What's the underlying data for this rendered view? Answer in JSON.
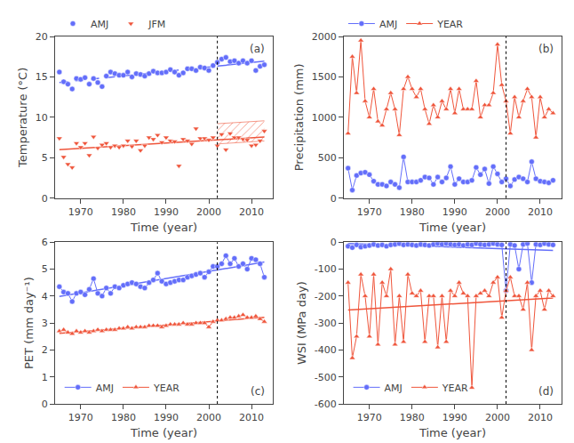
{
  "chart_data": [
    {
      "type": "line",
      "x_label": "Time (year)",
      "y_label": "Temperature (°C)",
      "annotation": "(a)",
      "x": [
        1965,
        1966,
        1967,
        1968,
        1969,
        1970,
        1971,
        1972,
        1973,
        1974,
        1975,
        1976,
        1977,
        1978,
        1979,
        1980,
        1981,
        1982,
        1983,
        1984,
        1985,
        1986,
        1987,
        1988,
        1989,
        1990,
        1991,
        1992,
        1993,
        1994,
        1995,
        1996,
        1997,
        1998,
        1999,
        2000,
        2001,
        2002,
        2003,
        2004,
        2005,
        2006,
        2007,
        2008,
        2009,
        2010,
        2011,
        2012,
        2013
      ],
      "xlim": [
        1964,
        2015
      ],
      "xticks": [
        1970,
        1980,
        1990,
        2000,
        2010
      ],
      "ylim": [
        0,
        20
      ],
      "yticks": [
        0,
        5,
        10,
        15,
        20
      ],
      "vline_x": 2002,
      "grid": false,
      "legend": "upper left",
      "series": [
        {
          "type": "band",
          "color": "#EF553B",
          "x": [
            2002,
            2013
          ],
          "lower": [
            6.707,
            7.068
          ],
          "upper": [
            9.207,
            9.568
          ]
        },
        {
          "type": "line",
          "color": "#636efa",
          "line_style": "dashed",
          "x": [
            1965,
            2002
          ],
          "values": [
            14.308,
            16.332
          ]
        },
        {
          "type": "line",
          "color": "#636efa",
          "line_style": "solid",
          "x": [
            2002,
            2013
          ],
          "values": [
            16.332,
            16.933
          ]
        },
        {
          "type": "line",
          "color": "#EF553B",
          "line_style": "solid",
          "x": [
            1965,
            2013
          ],
          "values": [
            5.991,
            7.568
          ]
        },
        {
          "type": "scatter",
          "name": "JFM",
          "color": "#EF553B",
          "marker": "triangle-down",
          "line_style": "none",
          "values": [
            7.4,
            5.1,
            4.2,
            3.8,
            6.8,
            6.3,
            6.8,
            5.3,
            7.6,
            6.2,
            6.6,
            6.8,
            6.3,
            6.5,
            6.3,
            6.5,
            7.1,
            6.4,
            7.1,
            5.9,
            6.5,
            7.5,
            7.3,
            7.8,
            6.9,
            7.5,
            7.1,
            7.0,
            4.0,
            7.3,
            7.1,
            6.7,
            8.6,
            7.4,
            7.4,
            7.2,
            7.5,
            6.5,
            7.9,
            6.0,
            8.0,
            7.5,
            7.5,
            7.3,
            7.2,
            6.5,
            6.6,
            7.1,
            8.3
          ]
        },
        {
          "type": "scatter",
          "name": "AMJ",
          "color": "#636efa",
          "marker": "circle",
          "line_style": "none",
          "values": [
            15.6,
            14.4,
            14.1,
            13.5,
            14.8,
            14.7,
            14.9,
            14.1,
            14.8,
            14.3,
            13.8,
            15.1,
            15.6,
            15.4,
            15.2,
            15.2,
            15.6,
            15.0,
            15.4,
            15.3,
            15.1,
            15.4,
            15.7,
            15.5,
            15.5,
            15.6,
            15.9,
            15.6,
            15.2,
            15.5,
            16.0,
            16.0,
            15.8,
            16.2,
            16.1,
            15.8,
            16.4,
            16.8,
            17.2,
            17.4,
            16.9,
            17.0,
            16.7,
            17.0,
            16.7,
            17.0,
            15.8,
            16.3,
            16.5
          ]
        }
      ]
    },
    {
      "type": "line",
      "x_label": "Time (year)",
      "y_label": "Precipitation (mm)",
      "annotation": "(b)",
      "x": [
        1965,
        1966,
        1967,
        1968,
        1969,
        1970,
        1971,
        1972,
        1973,
        1974,
        1975,
        1976,
        1977,
        1978,
        1979,
        1980,
        1981,
        1982,
        1983,
        1984,
        1985,
        1986,
        1987,
        1988,
        1989,
        1990,
        1991,
        1992,
        1993,
        1994,
        1995,
        1996,
        1997,
        1998,
        1999,
        2000,
        2001,
        2002,
        2003,
        2004,
        2005,
        2006,
        2007,
        2008,
        2009,
        2010,
        2011,
        2012,
        2013
      ],
      "xlim": [
        1964,
        2015
      ],
      "xticks": [
        1970,
        1980,
        1990,
        2000,
        2010
      ],
      "ylim": [
        0,
        2000
      ],
      "yticks": [
        0,
        500,
        1000,
        1500,
        2000
      ],
      "vline_x": 2002,
      "grid": false,
      "legend": "upper left",
      "series": [
        {
          "type": "line",
          "name": "AMJ",
          "color": "#636efa",
          "marker": "circle",
          "line_style": "solid",
          "values": [
            370,
            100,
            280,
            310,
            320,
            290,
            210,
            170,
            170,
            150,
            200,
            170,
            130,
            510,
            200,
            200,
            200,
            220,
            260,
            250,
            170,
            260,
            200,
            250,
            390,
            170,
            240,
            200,
            200,
            220,
            380,
            290,
            360,
            180,
            390,
            300,
            200,
            240,
            150,
            230,
            260,
            240,
            200,
            450,
            240,
            210,
            200,
            190,
            220
          ]
        },
        {
          "type": "line",
          "name": "YEAR",
          "color": "#EF553B",
          "marker": "triangle-up",
          "line_style": "solid",
          "values": [
            800,
            1750,
            1300,
            1950,
            1200,
            1000,
            1350,
            950,
            900,
            1100,
            1300,
            1100,
            780,
            1350,
            1500,
            1350,
            1250,
            1350,
            1100,
            920,
            1150,
            1000,
            1200,
            1100,
            1350,
            1050,
            1350,
            1100,
            1100,
            1100,
            1450,
            1000,
            1150,
            1150,
            1300,
            1900,
            1400,
            1200,
            800,
            1250,
            1000,
            1200,
            1350,
            1250,
            750,
            1250,
            1000,
            1100,
            1050
          ]
        }
      ]
    },
    {
      "type": "line",
      "x_label": "Time (year)",
      "y_label": "PET (mm day⁻¹)",
      "annotation": "(c)",
      "x": [
        1965,
        1966,
        1967,
        1968,
        1969,
        1970,
        1971,
        1972,
        1973,
        1974,
        1975,
        1976,
        1977,
        1978,
        1979,
        1980,
        1981,
        1982,
        1983,
        1984,
        1985,
        1986,
        1987,
        1988,
        1989,
        1990,
        1991,
        1992,
        1993,
        1994,
        1995,
        1996,
        1997,
        1998,
        1999,
        2000,
        2001,
        2002,
        2003,
        2004,
        2005,
        2006,
        2007,
        2008,
        2009,
        2010,
        2011,
        2012,
        2013
      ],
      "xlim": [
        1964,
        2015
      ],
      "xticks": [
        1970,
        1980,
        1990,
        2000,
        2010
      ],
      "ylim": [
        0,
        6
      ],
      "yticks": [
        0,
        1,
        2,
        3,
        4,
        5,
        6
      ],
      "vline_x": 2002,
      "grid": false,
      "legend": "lower left",
      "series": [
        {
          "type": "line",
          "color": "#636efa",
          "line_style": "solid",
          "x": [
            1965,
            2013
          ],
          "values": [
            3.984,
            5.263
          ]
        },
        {
          "type": "line",
          "color": "#EF553B",
          "line_style": "solid",
          "x": [
            1965,
            2013
          ],
          "values": [
            2.617,
            3.214
          ]
        },
        {
          "type": "line",
          "name": "AMJ",
          "color": "#636efa",
          "marker": "circle",
          "line_style": "solid",
          "values": [
            4.35,
            4.15,
            4.1,
            3.8,
            4.1,
            4.15,
            4.05,
            4.25,
            4.65,
            4.1,
            4.0,
            4.3,
            4.1,
            4.35,
            4.3,
            4.4,
            4.45,
            4.5,
            4.45,
            4.35,
            4.3,
            4.5,
            4.6,
            4.85,
            4.55,
            4.45,
            4.5,
            4.55,
            4.6,
            4.6,
            4.7,
            4.75,
            4.8,
            4.85,
            4.7,
            4.9,
            5.1,
            5.1,
            5.2,
            5.5,
            5.2,
            5.4,
            5.1,
            5.2,
            5.0,
            5.4,
            5.35,
            5.2,
            4.7
          ]
        },
        {
          "type": "line",
          "name": "YEAR",
          "color": "#EF553B",
          "marker": "triangle-up",
          "line_style": "solid",
          "values": [
            2.7,
            2.75,
            2.65,
            2.6,
            2.7,
            2.65,
            2.7,
            2.65,
            2.7,
            2.75,
            2.7,
            2.75,
            2.75,
            2.75,
            2.8,
            2.8,
            2.85,
            2.8,
            2.85,
            2.85,
            2.85,
            2.9,
            2.9,
            2.9,
            2.85,
            2.9,
            2.95,
            2.95,
            2.95,
            3.0,
            2.95,
            2.95,
            3.0,
            3.0,
            3.0,
            2.85,
            3.05,
            3.1,
            3.1,
            3.15,
            3.2,
            3.2,
            3.25,
            3.3,
            3.2,
            3.2,
            3.25,
            3.15,
            3.05
          ]
        }
      ]
    },
    {
      "type": "line",
      "x_label": "Time (year)",
      "y_label": "WSI (MPa day)",
      "annotation": "(d)",
      "x": [
        1965,
        1966,
        1967,
        1968,
        1969,
        1970,
        1971,
        1972,
        1973,
        1974,
        1975,
        1976,
        1977,
        1978,
        1979,
        1980,
        1981,
        1982,
        1983,
        1984,
        1985,
        1986,
        1987,
        1988,
        1989,
        1990,
        1991,
        1992,
        1993,
        1994,
        1995,
        1996,
        1997,
        1998,
        1999,
        2000,
        2001,
        2002,
        2003,
        2004,
        2005,
        2006,
        2007,
        2008,
        2009,
        2010,
        2011,
        2012,
        2013
      ],
      "xlim": [
        1964,
        2015
      ],
      "xticks": [
        1970,
        1980,
        1990,
        2000,
        2010
      ],
      "ylim": [
        -600,
        0
      ],
      "yticks": [
        -600,
        -500,
        -400,
        -300,
        -200,
        -100,
        0
      ],
      "vline_x": 2002,
      "grid": false,
      "legend": "lower left",
      "series": [
        {
          "type": "line",
          "color": "#636efa",
          "line_style": "solid",
          "x": [
            1965,
            2013
          ],
          "values": [
            -4.86,
            -30.569
          ]
        },
        {
          "type": "line",
          "color": "#EF553B",
          "line_style": "solid",
          "x": [
            1965,
            2013
          ],
          "values": [
            -251.616,
            -206.751
          ]
        },
        {
          "type": "line",
          "name": "AMJ",
          "color": "#636efa",
          "marker": "circle",
          "line_style": "solid",
          "values": [
            -15,
            -20,
            -10,
            -18,
            -15,
            -12,
            -8,
            -12,
            -10,
            -15,
            -10,
            -8,
            -5,
            -10,
            -8,
            -10,
            -12,
            -8,
            -10,
            -12,
            -8,
            -5,
            -8,
            -5,
            -8,
            -10,
            -8,
            -12,
            -8,
            -10,
            -5,
            -8,
            -10,
            -8,
            -5,
            -8,
            -10,
            -180,
            -8,
            -12,
            -100,
            -8,
            -5,
            -150,
            -8,
            -10,
            -5,
            -8,
            -10
          ]
        },
        {
          "type": "line",
          "name": "YEAR",
          "color": "#EF553B",
          "marker": "triangle-up",
          "line_style": "solid",
          "values": [
            -150,
            -430,
            -350,
            -120,
            -200,
            -350,
            -120,
            -380,
            -150,
            -200,
            -100,
            -380,
            -200,
            -370,
            -120,
            -190,
            -200,
            -180,
            -370,
            -200,
            -200,
            -390,
            -200,
            -370,
            -180,
            -200,
            -150,
            -190,
            -200,
            -540,
            -200,
            -190,
            -180,
            -200,
            -150,
            -130,
            -280,
            -180,
            -130,
            -200,
            -200,
            -250,
            -150,
            -400,
            -200,
            -180,
            -250,
            -180,
            -200
          ]
        }
      ]
    }
  ]
}
